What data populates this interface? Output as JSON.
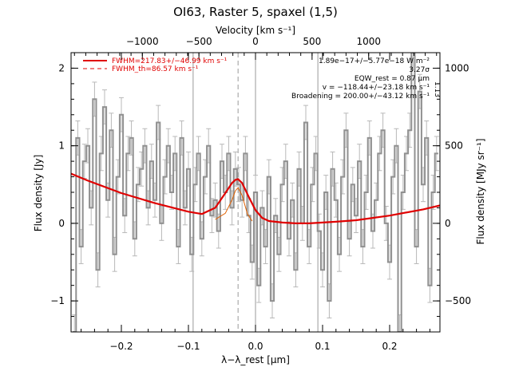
{
  "chart_data": {
    "type": "line",
    "title": "OI63, Raster 5, spaxel (1,5)",
    "xlabel": "λ−λ_rest [μm]",
    "ylabel_left": "Flux density [Jy]",
    "top_axis_label": "Velocity [km s⁻¹]",
    "ylabel_right": "Flux density [MJy sr⁻¹]",
    "xlim": [
      -0.275,
      0.275
    ],
    "ylim": [
      -1.4,
      2.2
    ],
    "top_xlim": [
      -1630,
      1630
    ],
    "right_ylim": [
      -700,
      1100
    ],
    "x_ticks": [
      -0.2,
      -0.1,
      0.0,
      0.1,
      0.2
    ],
    "x_tick_labels": [
      "−0.2",
      "−0.1",
      "0.0",
      "0.1",
      "0.2"
    ],
    "y_ticks": [
      -1,
      0,
      1,
      2
    ],
    "y_tick_labels": [
      "−1",
      "0",
      "1",
      "2"
    ],
    "top_ticks": [
      -1000,
      -500,
      0,
      500,
      1000
    ],
    "top_tick_labels": [
      "−1000",
      "−500",
      "0",
      "500",
      "1000"
    ],
    "right_ticks": [
      -500,
      0,
      500,
      1000
    ],
    "right_tick_labels": [
      "−500",
      "0",
      "500",
      "1000"
    ],
    "vertical_lines": [
      -0.093,
      0.0,
      0.093
    ],
    "dashed_line": -0.026,
    "annotations": [
      "1.89e−17+/−5.77e−18 W m⁻²",
      "3.27σ",
      "EQW_rest = 0.87 μm",
      "v = −118.44+/−23.18 km s⁻¹",
      "Broadening = 200.00+/−43.12 km s⁻¹"
    ],
    "right_rotated_label": "1.13",
    "legend": {
      "position": "top-left",
      "entries": [
        {
          "label": "FWHM=217.83+/−46.99 km s⁻¹",
          "style": "solid",
          "color": "#e00000"
        },
        {
          "label": "FWHM_th=86.57 km s⁻¹",
          "style": "dashed",
          "color": "#e00000"
        }
      ]
    },
    "colors": {
      "data": "#909090",
      "error": "#b8b8b8",
      "fit": "#e00000",
      "line_profile": "#e06000"
    },
    "series": [
      {
        "kind": "data",
        "x": [
          -0.27,
          -0.265,
          -0.26,
          -0.255,
          -0.25,
          -0.245,
          -0.24,
          -0.235,
          -0.23,
          -0.225,
          -0.22,
          -0.215,
          -0.21,
          -0.205,
          -0.2,
          -0.195,
          -0.19,
          -0.185,
          -0.18,
          -0.175,
          -0.17,
          -0.165,
          -0.16,
          -0.155,
          -0.15,
          -0.145,
          -0.14,
          -0.135,
          -0.13,
          -0.125,
          -0.12,
          -0.115,
          -0.11,
          -0.105,
          -0.1,
          -0.095,
          -0.09,
          -0.085,
          -0.08,
          -0.075,
          -0.07,
          -0.065,
          -0.06,
          -0.055,
          -0.05,
          -0.045,
          -0.04,
          -0.035,
          -0.03,
          -0.025,
          -0.02,
          -0.015,
          -0.01,
          -0.005,
          0.0,
          0.005,
          0.01,
          0.015,
          0.02,
          0.025,
          0.03,
          0.035,
          0.04,
          0.045,
          0.05,
          0.055,
          0.06,
          0.065,
          0.07,
          0.075,
          0.08,
          0.085,
          0.09,
          0.095,
          0.1,
          0.105,
          0.11,
          0.115,
          0.12,
          0.125,
          0.13,
          0.135,
          0.14,
          0.145,
          0.15,
          0.155,
          0.16,
          0.165,
          0.17,
          0.175,
          0.18,
          0.185,
          0.19,
          0.195,
          0.2,
          0.205,
          0.21,
          0.215,
          0.22,
          0.225,
          0.23,
          0.235,
          0.24,
          0.245,
          0.25,
          0.255,
          0.26,
          0.265,
          0.27
        ],
        "y": [
          -1.4,
          1.1,
          -0.3,
          0.8,
          1.0,
          0.2,
          1.6,
          -0.6,
          0.9,
          1.5,
          0.3,
          1.2,
          -0.4,
          0.6,
          1.4,
          0.1,
          0.9,
          1.1,
          -0.2,
          0.5,
          0.7,
          1.0,
          0.2,
          0.8,
          0.3,
          1.3,
          0.0,
          0.6,
          1.0,
          0.4,
          0.9,
          -0.3,
          1.1,
          0.2,
          0.7,
          -0.4,
          0.5,
          0.9,
          -0.2,
          0.6,
          1.0,
          0.1,
          0.3,
          -0.1,
          0.8,
          0.4,
          0.9,
          0.2,
          0.7,
          0.5,
          0.3,
          0.9,
          0.1,
          -0.5,
          0.4,
          -0.8,
          0.2,
          -0.3,
          0.6,
          -1.0,
          0.1,
          -0.4,
          0.5,
          0.8,
          -0.2,
          0.3,
          -0.6,
          0.7,
          0.0,
          1.3,
          -0.3,
          0.5,
          0.9,
          -0.1,
          -0.6,
          0.4,
          -1.0,
          0.7,
          0.3,
          -0.4,
          0.6,
          1.2,
          -0.2,
          0.5,
          0.1,
          0.8,
          -0.3,
          0.4,
          1.1,
          -0.1,
          0.3,
          0.9,
          1.2,
          0.0,
          -0.5,
          0.6,
          1.0,
          -1.4,
          0.4,
          0.9,
          1.2,
          2.2,
          -0.3,
          1.7,
          0.5,
          1.1,
          -0.8,
          0.4,
          0.9
        ]
      },
      {
        "kind": "fit",
        "name": "FWHM=217.83+/−46.99 km s⁻¹",
        "x": [
          -0.275,
          -0.25,
          -0.2,
          -0.15,
          -0.1,
          -0.08,
          -0.06,
          -0.045,
          -0.035,
          -0.03,
          -0.026,
          -0.02,
          -0.01,
          0.0,
          0.01,
          0.02,
          0.04,
          0.06,
          0.08,
          0.1,
          0.12,
          0.15,
          0.2,
          0.25,
          0.275
        ],
        "y": [
          0.64,
          0.55,
          0.39,
          0.26,
          0.15,
          0.12,
          0.2,
          0.39,
          0.52,
          0.56,
          0.57,
          0.52,
          0.34,
          0.17,
          0.07,
          0.03,
          0.01,
          0.0,
          0.0,
          0.01,
          0.02,
          0.04,
          0.1,
          0.18,
          0.23
        ]
      },
      {
        "kind": "line_profile",
        "name": "FWHM_th=86.57 km s⁻¹",
        "x": [
          -0.06,
          -0.045,
          -0.035,
          -0.03,
          -0.026,
          -0.02,
          -0.012,
          -0.005
        ],
        "y": [
          0.05,
          0.13,
          0.3,
          0.42,
          0.46,
          0.36,
          0.12,
          0.03
        ]
      }
    ]
  }
}
